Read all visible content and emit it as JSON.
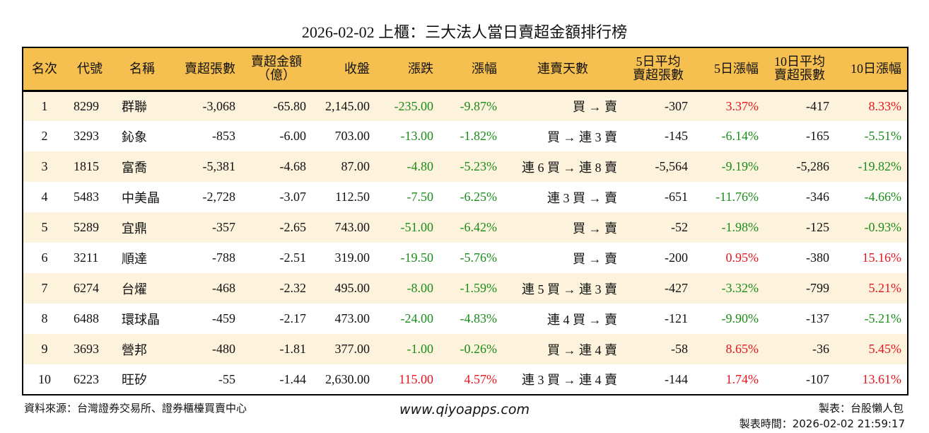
{
  "title": "2026-02-02 上櫃：三大法人當日賣超金額排行榜",
  "columns": [
    "名次",
    "代號",
    "名稱",
    "賣超張數",
    "賣超金額\n（億）",
    "收盤",
    "漲跌",
    "漲幅",
    "連賣天數",
    "5日平均\n賣超張數",
    "5日漲幅",
    "10日平均\n賣超張數",
    "10日漲幅"
  ],
  "colors": {
    "header_bg": "#f6c050",
    "row_alt_bg": "#fdf3dc",
    "up": "#e8141e",
    "down": "#1a8c1a"
  },
  "rows": [
    [
      "1",
      "8299",
      "群聯",
      "-3,068",
      "-65.80",
      "2,145.00",
      "-235.00",
      "-9.87%",
      "買 → 賣",
      "-307",
      "3.37%",
      "-417",
      "8.33%"
    ],
    [
      "2",
      "3293",
      "鈊象",
      "-853",
      "-6.00",
      "703.00",
      "-13.00",
      "-1.82%",
      "買 → 連 3 賣",
      "-145",
      "-6.14%",
      "-165",
      "-5.51%"
    ],
    [
      "3",
      "1815",
      "富喬",
      "-5,381",
      "-4.68",
      "87.00",
      "-4.80",
      "-5.23%",
      "連 6 買 → 連 8 賣",
      "-5,564",
      "-9.19%",
      "-5,286",
      "-19.82%"
    ],
    [
      "4",
      "5483",
      "中美晶",
      "-2,728",
      "-3.07",
      "112.50",
      "-7.50",
      "-6.25%",
      "連 3 買 → 賣",
      "-651",
      "-11.76%",
      "-346",
      "-4.66%"
    ],
    [
      "5",
      "5289",
      "宜鼎",
      "-357",
      "-2.65",
      "743.00",
      "-51.00",
      "-6.42%",
      "買 → 賣",
      "-52",
      "-1.98%",
      "-125",
      "-0.93%"
    ],
    [
      "6",
      "3211",
      "順達",
      "-788",
      "-2.51",
      "319.00",
      "-19.50",
      "-5.76%",
      "買 → 賣",
      "-200",
      "0.95%",
      "-380",
      "15.16%"
    ],
    [
      "7",
      "6274",
      "台燿",
      "-468",
      "-2.32",
      "495.00",
      "-8.00",
      "-1.59%",
      "連 5 買 → 連 3 賣",
      "-427",
      "-3.32%",
      "-799",
      "5.21%"
    ],
    [
      "8",
      "6488",
      "環球晶",
      "-459",
      "-2.17",
      "473.00",
      "-24.00",
      "-4.83%",
      "連 4 買 → 賣",
      "-121",
      "-9.90%",
      "-137",
      "-5.21%"
    ],
    [
      "9",
      "3693",
      "營邦",
      "-480",
      "-1.81",
      "377.00",
      "-1.00",
      "-0.26%",
      "買 → 連 4 賣",
      "-58",
      "8.65%",
      "-36",
      "5.45%"
    ],
    [
      "10",
      "6223",
      "旺矽",
      "-55",
      "-1.44",
      "2,630.00",
      "115.00",
      "4.57%",
      "連 3 買 → 連 4 賣",
      "-144",
      "1.74%",
      "-107",
      "13.61%"
    ]
  ],
  "footer": {
    "source": "資料來源：台灣證券交易所、證券櫃檯買賣中心",
    "url": "www.qiyoapps.com",
    "maker": "製表：台股懶人包",
    "time": "製表時間：2026-02-02 21:59:17"
  }
}
